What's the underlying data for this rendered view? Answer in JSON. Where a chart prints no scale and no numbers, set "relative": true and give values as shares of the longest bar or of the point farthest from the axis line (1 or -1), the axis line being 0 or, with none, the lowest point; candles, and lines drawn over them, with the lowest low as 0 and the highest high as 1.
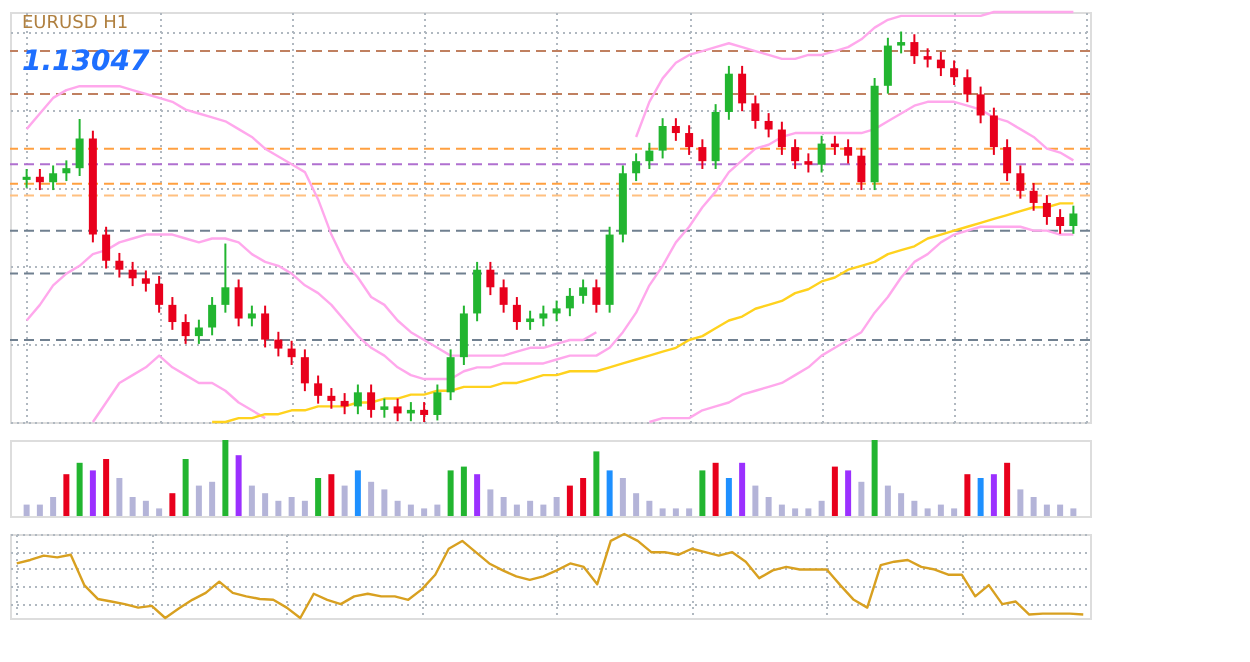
{
  "chart_data": [
    {
      "type": "candlestick",
      "relative": true,
      "title": "EURUSD H1",
      "annotations": [
        "1.13047"
      ],
      "grid": true,
      "categories": [
        null,
        null,
        null,
        null,
        null,
        null,
        null,
        null,
        null,
        null,
        null,
        null,
        null,
        null,
        null,
        null,
        null,
        null,
        null,
        null,
        null,
        null,
        null,
        null,
        null,
        null,
        null,
        null,
        null,
        null,
        null,
        null,
        null,
        null,
        null,
        null,
        null,
        null,
        null,
        null,
        null,
        null,
        null,
        null,
        null,
        null,
        null,
        null,
        null,
        null,
        null,
        null,
        null,
        null,
        null,
        null,
        null,
        null,
        null,
        null,
        null,
        null,
        null,
        null,
        null,
        null,
        null,
        null,
        null,
        null,
        null,
        null,
        null,
        null,
        null,
        null,
        null,
        null,
        null,
        null
      ],
      "ohlc": [
        [
          0.62,
          0.648,
          0.6,
          0.628
        ],
        [
          0.628,
          0.648,
          0.594,
          0.614
        ],
        [
          0.614,
          0.657,
          0.594,
          0.637
        ],
        [
          0.637,
          0.67,
          0.617,
          0.65
        ],
        [
          0.65,
          0.776,
          0.63,
          0.726
        ],
        [
          0.726,
          0.746,
          0.46,
          0.48
        ],
        [
          0.48,
          0.5,
          0.393,
          0.413
        ],
        [
          0.413,
          0.433,
          0.37,
          0.39
        ],
        [
          0.39,
          0.41,
          0.348,
          0.368
        ],
        [
          0.368,
          0.388,
          0.334,
          0.354
        ],
        [
          0.354,
          0.374,
          0.28,
          0.3
        ],
        [
          0.3,
          0.32,
          0.236,
          0.256
        ],
        [
          0.256,
          0.276,
          0.2,
          0.22
        ],
        [
          0.22,
          0.262,
          0.2,
          0.242
        ],
        [
          0.242,
          0.32,
          0.222,
          0.3
        ],
        [
          0.3,
          0.457,
          0.28,
          0.345
        ],
        [
          0.345,
          0.365,
          0.245,
          0.265
        ],
        [
          0.265,
          0.298,
          0.245,
          0.278
        ],
        [
          0.278,
          0.298,
          0.191,
          0.211
        ],
        [
          0.211,
          0.231,
          0.168,
          0.188
        ],
        [
          0.188,
          0.208,
          0.146,
          0.166
        ],
        [
          0.166,
          0.186,
          0.079,
          0.099
        ],
        [
          0.099,
          0.119,
          0.047,
          0.067
        ],
        [
          0.067,
          0.087,
          0.034,
          0.054
        ],
        [
          0.054,
          0.074,
          0.02,
          0.04
        ],
        [
          0.04,
          0.096,
          0.02,
          0.076
        ],
        [
          0.076,
          0.096,
          0.011,
          0.031
        ],
        [
          0.031,
          0.06,
          0.011,
          0.04
        ],
        [
          0.04,
          0.06,
          0.002,
          0.022
        ],
        [
          0.022,
          0.051,
          0.002,
          0.031
        ],
        [
          0.031,
          0.051,
          0,
          0.018
        ],
        [
          0.018,
          0.096,
          0.004,
          0.076
        ],
        [
          0.076,
          0.186,
          0.056,
          0.166
        ],
        [
          0.166,
          0.298,
          0.146,
          0.278
        ],
        [
          0.278,
          0.41,
          0.258,
          0.39
        ],
        [
          0.39,
          0.41,
          0.325,
          0.345
        ],
        [
          0.345,
          0.365,
          0.28,
          0.3
        ],
        [
          0.3,
          0.32,
          0.236,
          0.256
        ],
        [
          0.256,
          0.285,
          0.236,
          0.265
        ],
        [
          0.265,
          0.298,
          0.245,
          0.278
        ],
        [
          0.278,
          0.311,
          0.258,
          0.291
        ],
        [
          0.291,
          0.343,
          0.271,
          0.323
        ],
        [
          0.323,
          0.365,
          0.303,
          0.345
        ],
        [
          0.345,
          0.365,
          0.28,
          0.3
        ],
        [
          0.3,
          0.5,
          0.28,
          0.48
        ],
        [
          0.48,
          0.657,
          0.46,
          0.637
        ],
        [
          0.637,
          0.688,
          0.617,
          0.668
        ],
        [
          0.668,
          0.715,
          0.648,
          0.695
        ],
        [
          0.695,
          0.778,
          0.675,
          0.758
        ],
        [
          0.758,
          0.778,
          0.72,
          0.74
        ],
        [
          0.74,
          0.76,
          0.684,
          0.704
        ],
        [
          0.704,
          0.724,
          0.648,
          0.668
        ],
        [
          0.668,
          0.814,
          0.648,
          0.794
        ],
        [
          0.794,
          0.912,
          0.774,
          0.892
        ],
        [
          0.892,
          0.912,
          0.796,
          0.816
        ],
        [
          0.816,
          0.836,
          0.751,
          0.771
        ],
        [
          0.771,
          0.791,
          0.729,
          0.749
        ],
        [
          0.749,
          0.769,
          0.684,
          0.704
        ],
        [
          0.704,
          0.724,
          0.648,
          0.668
        ],
        [
          0.668,
          0.688,
          0.639,
          0.659
        ],
        [
          0.659,
          0.733,
          0.639,
          0.713
        ],
        [
          0.713,
          0.733,
          0.684,
          0.704
        ],
        [
          0.704,
          0.724,
          0.662,
          0.682
        ],
        [
          0.682,
          0.702,
          0.594,
          0.614
        ],
        [
          0.614,
          0.881,
          0.594,
          0.861
        ],
        [
          0.861,
          0.984,
          0.841,
          0.964
        ],
        [
          0.964,
          1,
          0.944,
          0.973
        ],
        [
          0.973,
          0.993,
          0.917,
          0.937
        ],
        [
          0.937,
          0.957,
          0.908,
          0.928
        ],
        [
          0.928,
          0.948,
          0.886,
          0.906
        ],
        [
          0.906,
          0.926,
          0.863,
          0.883
        ],
        [
          0.883,
          0.903,
          0.819,
          0.839
        ],
        [
          0.839,
          0.859,
          0.765,
          0.785
        ],
        [
          0.785,
          0.805,
          0.684,
          0.704
        ],
        [
          0.704,
          0.724,
          0.617,
          0.637
        ],
        [
          0.637,
          0.657,
          0.572,
          0.592
        ],
        [
          0.592,
          0.612,
          0.541,
          0.561
        ],
        [
          0.561,
          0.581,
          0.505,
          0.525
        ],
        [
          0.525,
          0.545,
          0.482,
          0.502
        ],
        [
          0.502,
          0.554,
          0.482,
          0.534
        ]
      ],
      "series": [
        {
          "type": "line",
          "color": "#ffa8ec",
          "values": [
            0.75,
            0.79,
            0.83,
            0.85,
            0.86,
            0.86,
            0.86,
            0.86,
            0.85,
            0.84,
            0.83,
            0.82,
            0.8,
            0.79,
            0.78,
            0.77,
            0.75,
            0.73,
            0.7,
            0.68,
            0.66,
            0.64,
            0.57,
            0.48,
            0.41,
            0.37,
            0.32,
            0.3,
            0.26,
            0.23,
            0.21,
            0.19,
            0.17,
            0.17,
            0.17,
            0.17,
            0.17,
            0.18,
            0.19,
            0.19,
            0.2,
            0.21,
            0.21,
            0.23,
            null,
            null,
            0.73,
            0.82,
            0.88,
            0.92,
            0.94,
            0.95,
            0.96,
            0.97,
            0.96,
            0.95,
            0.94,
            0.93,
            0.93,
            0.94,
            0.94,
            0.95,
            0.96,
            0.98,
            1.01,
            1.03,
            1.04,
            1.04,
            1.04,
            1.04,
            1.04,
            1.04,
            1.04,
            1.05,
            1.05,
            1.05,
            1.05,
            1.05,
            1.05,
            1.05
          ]
        },
        {
          "type": "line",
          "color": "#ffa8ec",
          "values": [
            0.26,
            0.3,
            0.35,
            0.38,
            0.4,
            0.43,
            0.44,
            0.46,
            0.47,
            0.48,
            0.48,
            0.48,
            0.47,
            0.46,
            0.47,
            0.47,
            0.46,
            0.43,
            0.41,
            0.4,
            0.38,
            0.35,
            0.33,
            0.3,
            0.26,
            0.22,
            0.19,
            0.17,
            0.14,
            0.12,
            0.11,
            0.11,
            0.11,
            0.13,
            0.14,
            0.14,
            0.15,
            0.15,
            0.15,
            0.15,
            0.16,
            0.17,
            0.17,
            0.17,
            0.19,
            0.23,
            0.28,
            0.35,
            0.4,
            0.46,
            0.5,
            0.55,
            0.59,
            0.64,
            0.67,
            0.7,
            0.71,
            0.73,
            0.74,
            0.74,
            0.74,
            0.74,
            0.74,
            0.74,
            0.75,
            0.77,
            0.79,
            0.81,
            0.82,
            0.82,
            0.82,
            0.81,
            0.8,
            0.78,
            0.77,
            0.75,
            0.73,
            0.7,
            0.69,
            0.67
          ]
        },
        {
          "type": "line",
          "color": "#ffa8ec",
          "values": [
            null,
            null,
            null,
            null,
            null,
            0.0,
            0.05,
            0.1,
            0.12,
            0.14,
            0.17,
            0.14,
            0.12,
            0.1,
            0.1,
            0.08,
            0.05,
            0.03,
            0.01,
            null,
            null,
            null,
            null,
            null,
            null,
            null,
            null,
            null,
            null,
            null,
            null,
            null,
            null,
            null,
            null,
            null,
            null,
            null,
            null,
            null,
            null,
            null,
            null,
            null,
            null,
            null,
            null,
            0.0,
            0.01,
            0.01,
            0.01,
            0.03,
            0.04,
            0.05,
            0.07,
            0.08,
            0.09,
            0.1,
            0.12,
            0.14,
            0.17,
            0.19,
            0.21,
            0.23,
            0.28,
            0.32,
            0.37,
            0.41,
            0.43,
            0.46,
            0.48,
            0.49,
            0.5,
            0.5,
            0.5,
            0.5,
            0.49,
            0.49,
            0.48,
            0.48
          ]
        },
        {
          "type": "line",
          "color": "#ffd21e",
          "values": [
            null,
            null,
            null,
            null,
            null,
            null,
            null,
            null,
            null,
            null,
            null,
            null,
            null,
            null,
            0.0,
            0.0,
            0.01,
            0.01,
            0.02,
            0.02,
            0.03,
            0.03,
            0.04,
            0.04,
            0.04,
            0.05,
            0.05,
            0.06,
            0.06,
            0.07,
            0.07,
            0.08,
            0.08,
            0.09,
            0.09,
            0.09,
            0.1,
            0.1,
            0.11,
            0.12,
            0.12,
            0.13,
            0.13,
            0.13,
            0.14,
            0.15,
            0.16,
            0.17,
            0.18,
            0.19,
            0.21,
            0.22,
            0.24,
            0.26,
            0.27,
            0.29,
            0.3,
            0.31,
            0.33,
            0.34,
            0.36,
            0.37,
            0.39,
            0.4,
            0.41,
            0.43,
            0.44,
            0.45,
            0.47,
            0.48,
            0.49,
            0.5,
            0.51,
            0.52,
            0.53,
            0.54,
            0.55,
            0.55,
            0.56,
            0.56
          ]
        }
      ],
      "ref_lines": [
        {
          "axis": "y",
          "value": 0.95,
          "color": "#c08060",
          "line_style": "dashed"
        },
        {
          "axis": "y",
          "value": 0.84,
          "color": "#c08060",
          "line_style": "dashed"
        },
        {
          "axis": "y",
          "value": 0.7,
          "color": "#ffa040",
          "line_style": "dashed"
        },
        {
          "axis": "y",
          "value": 0.66,
          "color": "#b070d0",
          "line_style": "dashed"
        },
        {
          "axis": "y",
          "value": 0.61,
          "color": "#ffa040",
          "line_style": "dashed"
        },
        {
          "axis": "y",
          "value": 0.58,
          "color": "#ffc080",
          "line_style": "dashed"
        },
        {
          "axis": "y",
          "value": 0.49,
          "color": "#708090",
          "line_style": "dashed"
        },
        {
          "axis": "y",
          "value": 0.38,
          "color": "#708090",
          "line_style": "dashed"
        },
        {
          "axis": "y",
          "value": 0.21,
          "color": "#708090",
          "line_style": "dashed"
        }
      ]
    },
    {
      "type": "bar",
      "relative": true,
      "categories": [
        null,
        null,
        null,
        null,
        null,
        null,
        null,
        null,
        null,
        null,
        null,
        null,
        null,
        null,
        null,
        null,
        null,
        null,
        null,
        null,
        null,
        null,
        null,
        null,
        null,
        null,
        null,
        null,
        null,
        null,
        null,
        null,
        null,
        null,
        null,
        null,
        null,
        null,
        null,
        null,
        null,
        null,
        null,
        null,
        null,
        null,
        null,
        null,
        null,
        null,
        null,
        null,
        null,
        null,
        null,
        null,
        null,
        null,
        null,
        null,
        null,
        null,
        null,
        null,
        null,
        null,
        null,
        null,
        null,
        null,
        null,
        null,
        null,
        null,
        null,
        null,
        null,
        null,
        null,
        null
      ],
      "values": [
        0.15,
        0.15,
        0.25,
        0.55,
        0.7,
        0.6,
        0.75,
        0.5,
        0.25,
        0.2,
        0.1,
        0.3,
        0.75,
        0.4,
        0.45,
        1.0,
        0.8,
        0.4,
        0.3,
        0.2,
        0.25,
        0.2,
        0.5,
        0.55,
        0.4,
        0.6,
        0.45,
        0.35,
        0.2,
        0.15,
        0.1,
        0.15,
        0.6,
        0.65,
        0.55,
        0.35,
        0.25,
        0.15,
        0.2,
        0.15,
        0.25,
        0.4,
        0.5,
        0.85,
        0.6,
        0.5,
        0.3,
        0.2,
        0.1,
        0.1,
        0.1,
        0.6,
        0.7,
        0.5,
        0.7,
        0.4,
        0.25,
        0.15,
        0.1,
        0.1,
        0.2,
        0.65,
        0.6,
        0.45,
        1.0,
        0.4,
        0.3,
        0.2,
        0.1,
        0.15,
        0.1,
        0.55,
        0.5,
        0.55,
        0.7,
        0.35,
        0.25,
        0.15,
        0.15,
        0.1
      ],
      "colors": [
        "#b4b4d8",
        "#b4b4d8",
        "#b4b4d8",
        "#e8001c",
        "#22b530",
        "#9b30ff",
        "#e8001c",
        "#b4b4d8",
        "#b4b4d8",
        "#b4b4d8",
        "#b4b4d8",
        "#e8001c",
        "#22b530",
        "#b4b4d8",
        "#b4b4d8",
        "#22b530",
        "#9b30ff",
        "#b4b4d8",
        "#b4b4d8",
        "#b4b4d8",
        "#b4b4d8",
        "#b4b4d8",
        "#22b530",
        "#e8001c",
        "#b4b4d8",
        "#1e90ff",
        "#b4b4d8",
        "#b4b4d8",
        "#b4b4d8",
        "#b4b4d8",
        "#b4b4d8",
        "#b4b4d8",
        "#22b530",
        "#22b530",
        "#9b30ff",
        "#b4b4d8",
        "#b4b4d8",
        "#b4b4d8",
        "#b4b4d8",
        "#b4b4d8",
        "#b4b4d8",
        "#e8001c",
        "#e8001c",
        "#22b530",
        "#1e90ff",
        "#b4b4d8",
        "#b4b4d8",
        "#b4b4d8",
        "#b4b4d8",
        "#b4b4d8",
        "#b4b4d8",
        "#22b530",
        "#e8001c",
        "#1e90ff",
        "#9b30ff",
        "#b4b4d8",
        "#b4b4d8",
        "#b4b4d8",
        "#b4b4d8",
        "#b4b4d8",
        "#b4b4d8",
        "#e8001c",
        "#9b30ff",
        "#b4b4d8",
        "#22b530",
        "#b4b4d8",
        "#b4b4d8",
        "#b4b4d8",
        "#b4b4d8",
        "#b4b4d8",
        "#b4b4d8",
        "#e8001c",
        "#1e90ff",
        "#9b30ff",
        "#e8001c",
        "#b4b4d8",
        "#b4b4d8",
        "#b4b4d8",
        "#b4b4d8",
        "#b4b4d8"
      ]
    },
    {
      "type": "line",
      "relative": true,
      "grid": true,
      "categories": [
        null,
        null,
        null,
        null,
        null,
        null,
        null,
        null,
        null,
        null,
        null,
        null,
        null,
        null,
        null,
        null,
        null,
        null,
        null,
        null,
        null,
        null,
        null,
        null,
        null,
        null,
        null,
        null,
        null,
        null,
        null,
        null,
        null,
        null,
        null,
        null,
        null,
        null,
        null,
        null,
        null,
        null,
        null,
        null,
        null,
        null,
        null,
        null,
        null,
        null,
        null,
        null,
        null,
        null,
        null,
        null,
        null,
        null,
        null,
        null,
        null,
        null,
        null,
        null,
        null,
        null,
        null,
        null,
        null,
        null,
        null,
        null,
        null,
        null,
        null,
        null,
        null,
        null,
        null,
        null
      ],
      "series": [
        {
          "color": "#d8a020",
          "values": [
            0.66,
            0.7,
            0.75,
            0.73,
            0.76,
            0.41,
            0.25,
            0.22,
            0.19,
            0.15,
            0.17,
            0.03,
            0.14,
            0.24,
            0.32,
            0.45,
            0.32,
            0.28,
            0.25,
            0.24,
            0.15,
            0.03,
            0.31,
            0.24,
            0.19,
            0.28,
            0.31,
            0.28,
            0.28,
            0.24,
            0.36,
            0.53,
            0.83,
            0.92,
            0.79,
            0.66,
            0.58,
            0.51,
            0.47,
            0.51,
            0.58,
            0.66,
            0.62,
            0.42,
            0.92,
            1.0,
            0.92,
            0.79,
            0.79,
            0.76,
            0.83,
            0.79,
            0.75,
            0.79,
            0.68,
            0.49,
            0.58,
            0.62,
            0.59,
            0.59,
            0.59,
            0.41,
            0.24,
            0.15,
            0.64,
            0.68,
            0.7,
            0.62,
            0.59,
            0.53,
            0.53,
            0.28,
            0.41,
            0.19,
            0.22,
            0.07,
            0.08,
            0.08,
            0.08,
            0.07
          ]
        }
      ]
    }
  ]
}
